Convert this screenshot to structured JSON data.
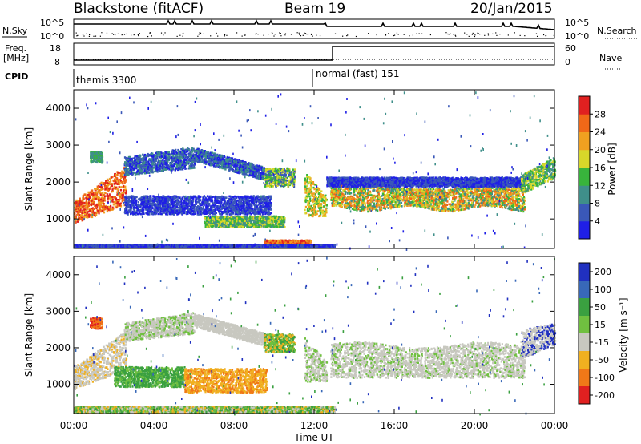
{
  "header": {
    "station": "Blackstone (fitACF)",
    "beam": "Beam 19",
    "date": "20/Jan/2015"
  },
  "noise_panel": {
    "left_label": "N.Sky",
    "right_label": "N.Search",
    "ticks_left": [
      "10^5",
      "10^0"
    ],
    "ticks_right": [
      "10^5",
      "10^0"
    ]
  },
  "freq_panel": {
    "left_label_1": "Freq.",
    "left_label_2": "[MHz]",
    "right_label": "Nave",
    "ticks_left": [
      "18",
      "8"
    ],
    "ticks_right": [
      "60",
      "0"
    ]
  },
  "cpid_panel": {
    "label": "CPID",
    "mode_1": "themis 3300",
    "mode_2": "normal (fast) 151"
  },
  "chart_data": [
    {
      "type": "heatmap",
      "title": "",
      "xlabel": "Time UT",
      "ylabel": "Slant Range [km]",
      "xlim": [
        0,
        24
      ],
      "ylim": [
        200,
        4500
      ],
      "x_ticks": [
        "00:00",
        "04:00",
        "08:00",
        "12:00",
        "16:00",
        "20:00",
        "00:00"
      ],
      "y_ticks": [
        "1000",
        "2000",
        "3000",
        "4000"
      ],
      "colorbar": {
        "label": "Power [dB]",
        "ticks": [
          "4",
          "8",
          "12",
          "16",
          "20",
          "24",
          "28"
        ],
        "colors": [
          "#1f1fe6",
          "#3a58b8",
          "#3f8f8a",
          "#38b43c",
          "#d7d72a",
          "#f0a020",
          "#f06818",
          "#e02020"
        ]
      }
    },
    {
      "type": "heatmap",
      "title": "",
      "xlabel": "Time UT",
      "ylabel": "Slant Range [km]",
      "xlim": [
        0,
        24
      ],
      "ylim": [
        200,
        4500
      ],
      "x_ticks": [
        "00:00",
        "04:00",
        "08:00",
        "12:00",
        "16:00",
        "20:00",
        "00:00"
      ],
      "y_ticks": [
        "1000",
        "2000",
        "3000",
        "4000"
      ],
      "colorbar": {
        "label": "Velocity [m s⁻¹]",
        "ticks": [
          "200",
          "100",
          "50",
          "15",
          "-15",
          "-50",
          "-100",
          "-200"
        ],
        "colors": [
          "#2030c0",
          "#3868b8",
          "#3aa040",
          "#70c040",
          "#c8c8c0",
          "#f0b020",
          "#f07818",
          "#e02020"
        ]
      }
    }
  ]
}
